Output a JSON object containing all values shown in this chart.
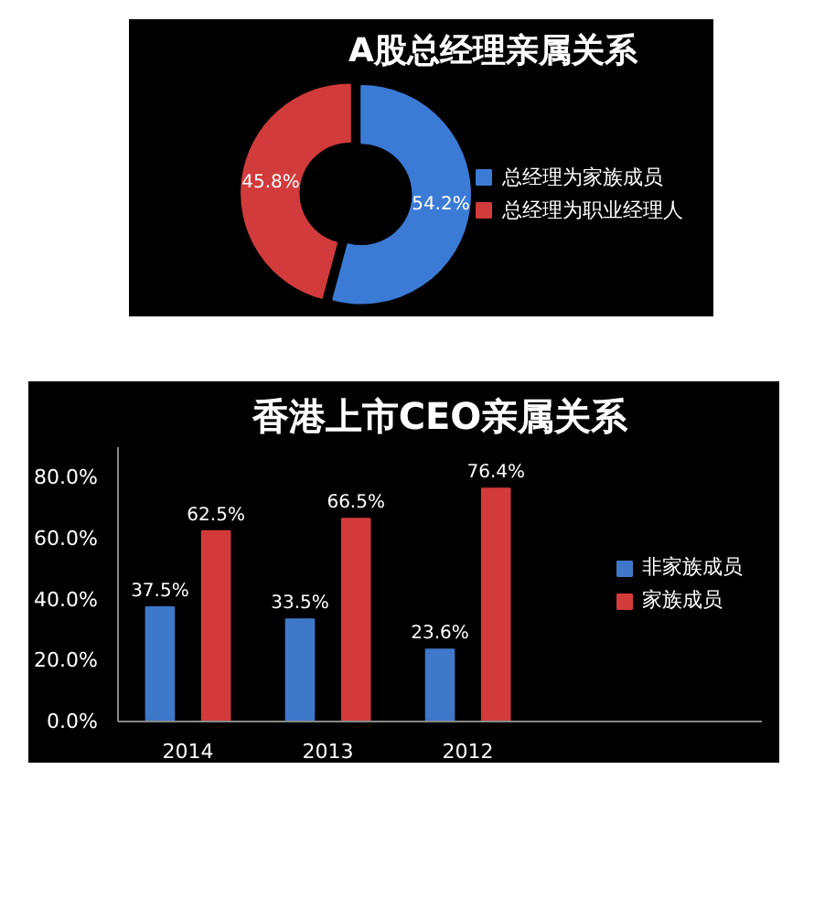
{
  "chart_data": [
    {
      "type": "donut",
      "title": "A股总经理亲属关系",
      "categories": [
        "总经理为家族成员",
        "总经理为职业经理人"
      ],
      "values": [
        54.2,
        45.8
      ],
      "colors": [
        "#3b7bd6",
        "#d13b3b"
      ],
      "value_labels": [
        "54.2%",
        "45.8%"
      ],
      "legend": "right"
    },
    {
      "type": "bar",
      "title": "香港上市CEO亲属关系",
      "categories": [
        "2014",
        "2013",
        "2012"
      ],
      "ylim": [
        0,
        90
      ],
      "yticks": [
        {
          "value": 0,
          "label": "0.0%"
        },
        {
          "value": 20,
          "label": "20.0%"
        },
        {
          "value": 40,
          "label": "40.0%"
        },
        {
          "value": 60,
          "label": "60.0%"
        },
        {
          "value": 80,
          "label": "80.0%"
        }
      ],
      "legend": "right",
      "series": [
        {
          "name": "非家族成员",
          "color": "#3f77c9",
          "values": [
            37.5,
            33.5,
            23.6
          ],
          "value_labels": [
            "37.5%",
            "33.5%",
            "23.6%"
          ]
        },
        {
          "name": "家族成员",
          "color": "#d33b3b",
          "values": [
            62.5,
            66.5,
            76.4
          ],
          "value_labels": [
            "62.5%",
            "66.5%",
            "76.4%"
          ]
        }
      ]
    }
  ]
}
